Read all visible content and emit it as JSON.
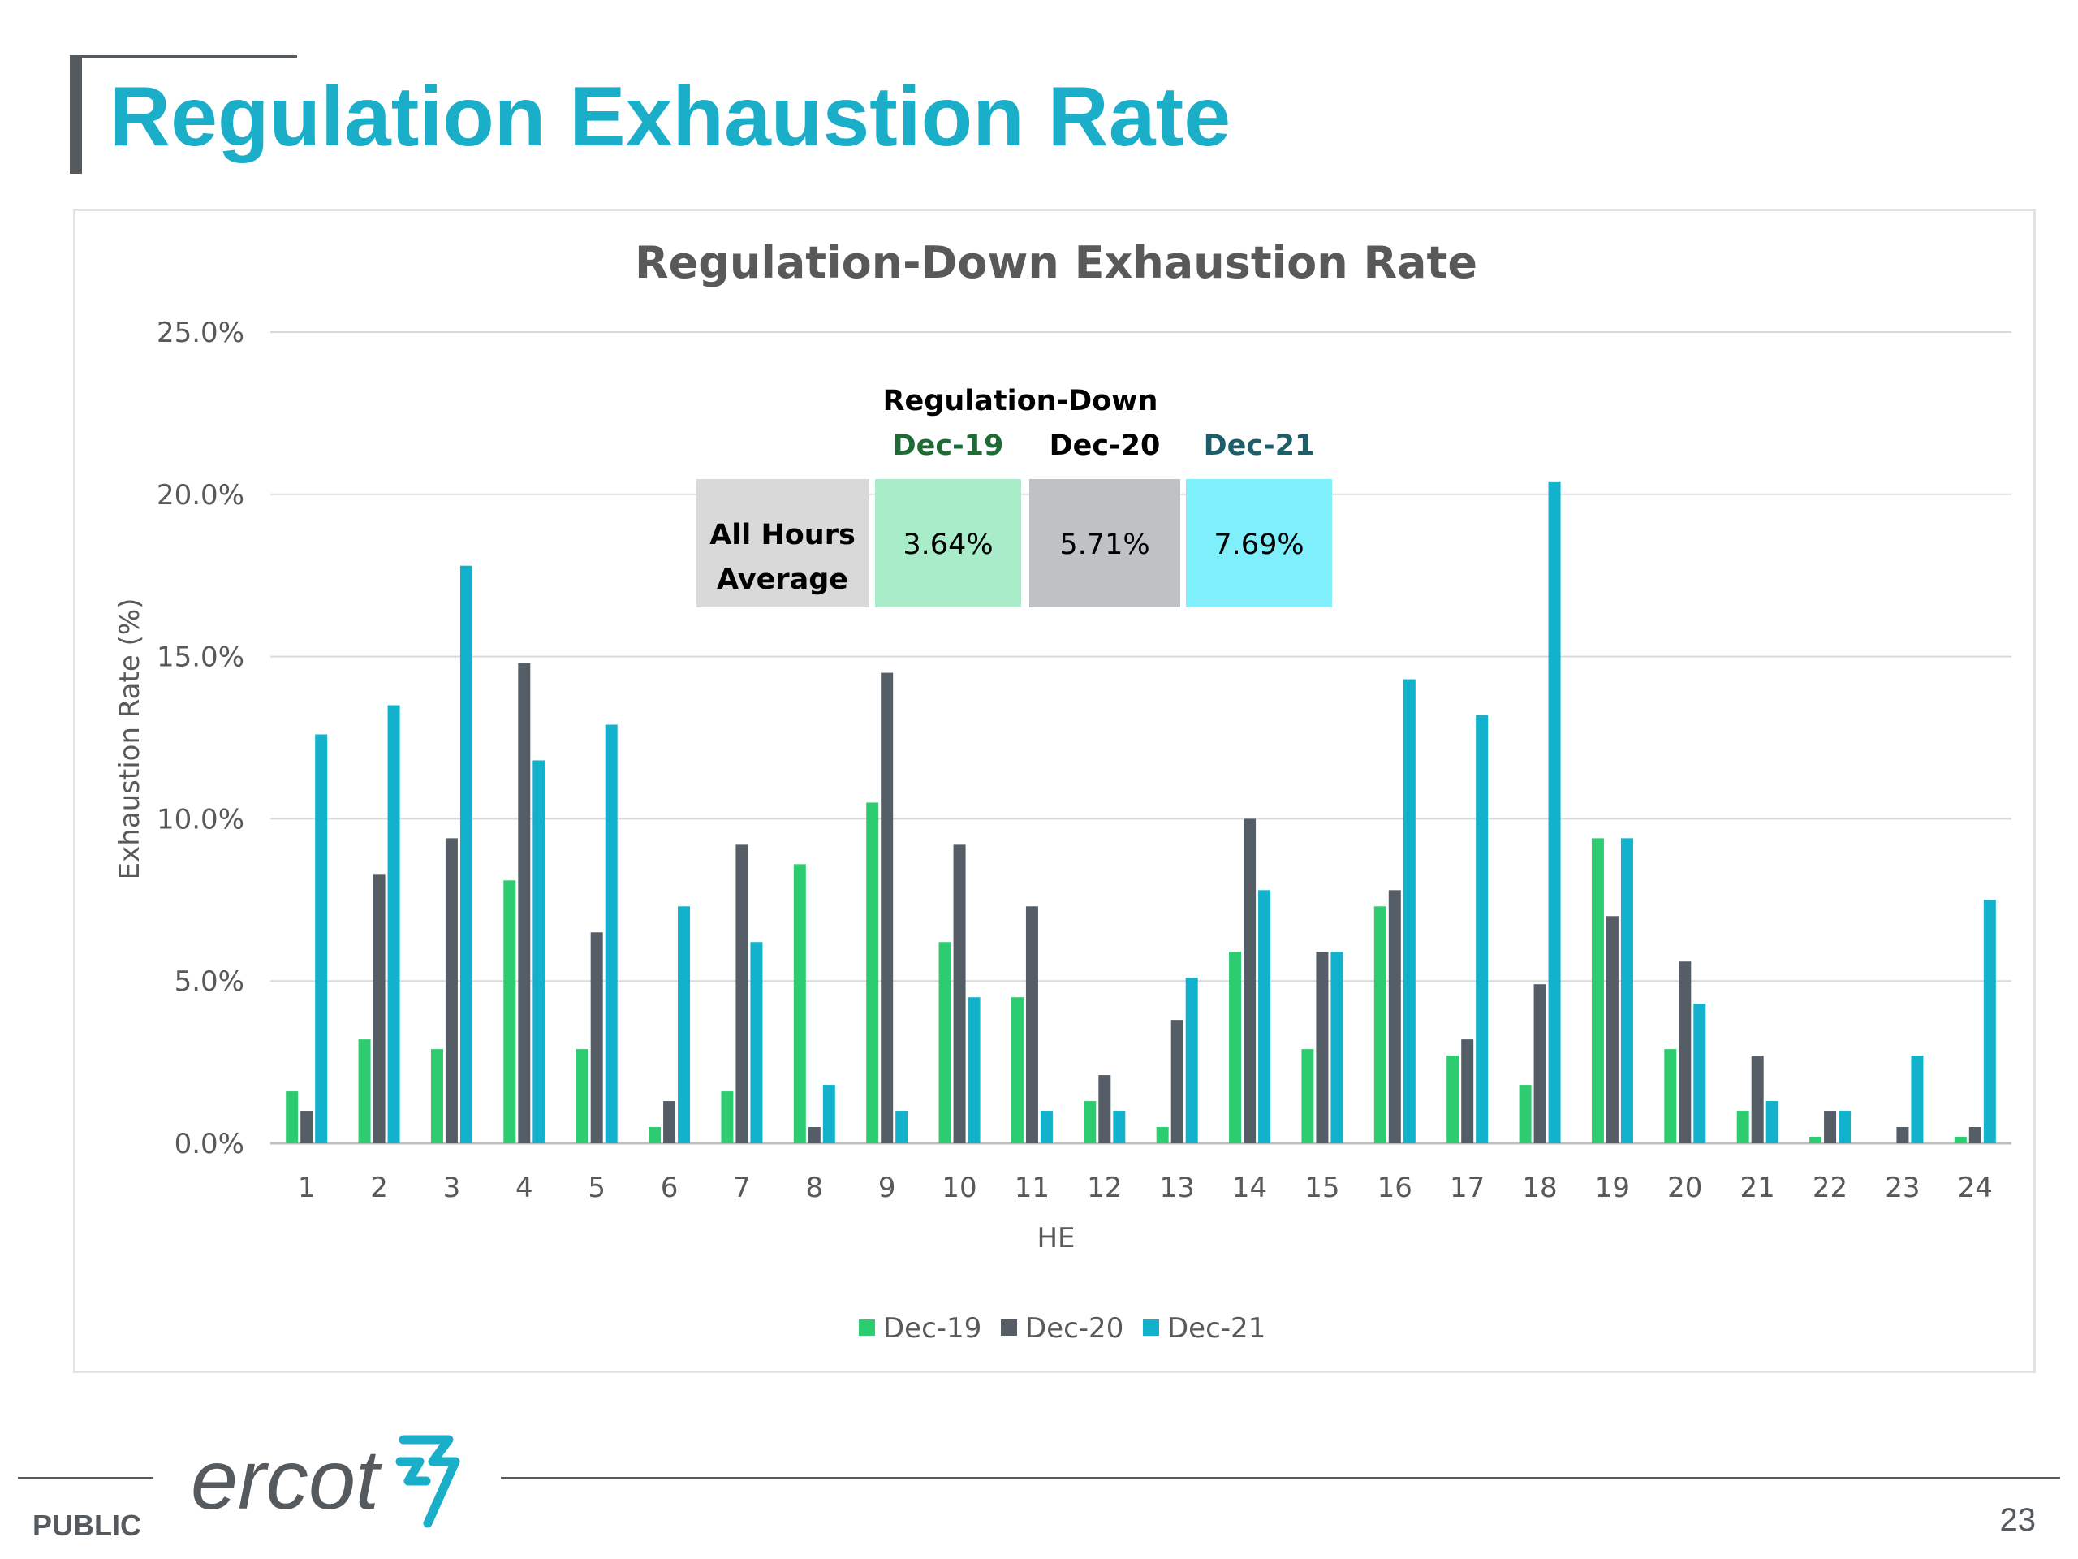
{
  "slide": {
    "title": "Regulation Exhaustion Rate",
    "footer_label": "PUBLIC",
    "page_number": "23",
    "logo_text": "ercot"
  },
  "colors": {
    "title": "#1aaec8",
    "Dec-19": "#2ecc71",
    "Dec-20": "#555e66",
    "Dec-21": "#12b1cc",
    "grid": "#d9d9d9",
    "accent_bar": "#555a5e"
  },
  "chart_data": {
    "type": "bar",
    "title": "Regulation-Down Exhaustion Rate",
    "xlabel": "HE",
    "ylabel": "Exhaustion Rate (%)",
    "ylim": [
      0,
      25
    ],
    "y_ticks": [
      "0.0%",
      "5.0%",
      "10.0%",
      "15.0%",
      "20.0%",
      "25.0%"
    ],
    "y_tick_values": [
      0,
      5,
      10,
      15,
      20,
      25
    ],
    "grid": true,
    "legend_position": "bottom",
    "categories": [
      "1",
      "2",
      "3",
      "4",
      "5",
      "6",
      "7",
      "8",
      "9",
      "10",
      "11",
      "12",
      "13",
      "14",
      "15",
      "16",
      "17",
      "18",
      "19",
      "20",
      "21",
      "22",
      "23",
      "24"
    ],
    "series": [
      {
        "name": "Dec-19",
        "color": "#2ecc71",
        "values": [
          1.6,
          3.2,
          2.9,
          8.1,
          2.9,
          0.5,
          1.6,
          8.6,
          10.5,
          6.2,
          4.5,
          1.3,
          0.5,
          5.9,
          2.9,
          7.3,
          2.7,
          1.8,
          9.4,
          2.9,
          1.0,
          0.2,
          0.0,
          0.2
        ]
      },
      {
        "name": "Dec-20",
        "color": "#555e66",
        "values": [
          1.0,
          8.3,
          9.4,
          14.8,
          6.5,
          1.3,
          9.2,
          0.5,
          14.5,
          9.2,
          7.3,
          2.1,
          3.8,
          10.0,
          5.9,
          7.8,
          3.2,
          4.9,
          7.0,
          5.6,
          2.7,
          1.0,
          0.5,
          0.5
        ]
      },
      {
        "name": "Dec-21",
        "color": "#12b1cc",
        "values": [
          12.6,
          13.5,
          17.8,
          11.8,
          12.9,
          7.3,
          6.2,
          1.8,
          1.0,
          4.5,
          1.0,
          1.0,
          5.1,
          7.8,
          5.9,
          14.3,
          13.2,
          20.4,
          9.4,
          4.3,
          1.3,
          1.0,
          2.7,
          7.5
        ]
      }
    ],
    "summary_table": {
      "title": "Regulation-Down",
      "row_label_line1": "All Hours",
      "row_label_line2": "Average",
      "columns": [
        {
          "label": "Dec-19",
          "value": "3.64%",
          "header_color": "#1e6b35",
          "fill": "#a8ecc9"
        },
        {
          "label": "Dec-20",
          "value": "5.71%",
          "header_color": "#000000",
          "fill": "#bfc2c5"
        },
        {
          "label": "Dec-21",
          "value": "7.69%",
          "header_color": "#1d5e6b",
          "fill": "#7ff0fb"
        }
      ]
    }
  }
}
